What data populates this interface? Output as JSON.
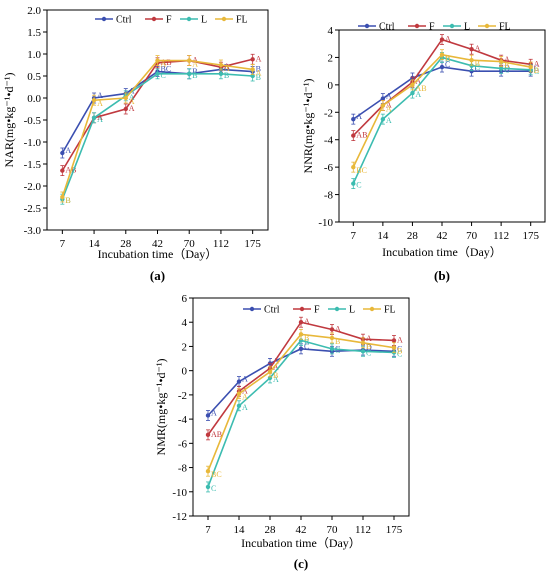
{
  "colors": {
    "Ctrl": "#3b4fb0",
    "F": "#c0393f",
    "L": "#3cbcb0",
    "FL": "#e8b83a"
  },
  "chart_data": [
    {
      "type": "line",
      "panel_label": "(a)",
      "xlabel": "Incubation time（Day）",
      "ylabel": "NAR(mg•kg⁻¹•d⁻¹)",
      "categories": [
        "7",
        "14",
        "28",
        "42",
        "70",
        "112",
        "175"
      ],
      "yticks": [
        "2.0",
        "1.5",
        "1.0",
        "0.5",
        "0.0",
        "-0.5",
        "-1.0",
        "-1.5",
        "-2.0",
        "-2.5",
        "-3.0"
      ],
      "ylim": [
        -3.0,
        2.0
      ],
      "legend": [
        "Ctrl",
        "F",
        "L",
        "FL"
      ],
      "series": [
        {
          "name": "Ctrl",
          "values": [
            -1.25,
            0.0,
            0.1,
            0.6,
            0.55,
            0.65,
            0.6
          ],
          "letters": [
            "A",
            "A",
            "A",
            "BC",
            "B",
            "B",
            "B"
          ]
        },
        {
          "name": "F",
          "values": [
            -1.65,
            -0.45,
            -0.25,
            0.8,
            0.85,
            0.7,
            0.88
          ],
          "letters": [
            "AB",
            "A",
            "A",
            "AB",
            "A",
            "A",
            "A"
          ]
        },
        {
          "name": "L",
          "values": [
            -2.3,
            -0.45,
            0.05,
            0.55,
            0.55,
            0.55,
            0.5
          ],
          "letters": [
            "B",
            "A",
            "A",
            "C",
            "B",
            "B",
            "B"
          ]
        },
        {
          "name": "FL",
          "values": [
            -2.25,
            -0.05,
            0.0,
            0.85,
            0.85,
            0.75,
            0.65
          ],
          "letters": [
            "B",
            "A",
            "A",
            "A",
            "A",
            "A",
            "A"
          ]
        }
      ]
    },
    {
      "type": "line",
      "panel_label": "(b)",
      "xlabel": "Incubation time（Day）",
      "ylabel": "NNR(mg•kg⁻¹•d⁻¹)",
      "categories": [
        "7",
        "14",
        "28",
        "42",
        "70",
        "112",
        "175"
      ],
      "yticks": [
        "4",
        "2",
        "0",
        "-2",
        "-4",
        "-6",
        "-8",
        "-10"
      ],
      "ylim": [
        -10,
        4
      ],
      "legend": [
        "Ctrl",
        "F",
        "L",
        "FL"
      ],
      "series": [
        {
          "name": "Ctrl",
          "values": [
            -2.5,
            -1.0,
            0.5,
            1.3,
            1.0,
            1.0,
            1.0
          ],
          "letters": [
            "A",
            "A",
            "A",
            "C",
            "C",
            "D",
            "C"
          ]
        },
        {
          "name": "F",
          "values": [
            -3.7,
            -1.5,
            0.2,
            3.3,
            2.6,
            1.8,
            1.5
          ],
          "letters": [
            "AB",
            "A",
            "A",
            "A",
            "A",
            "A",
            "A"
          ]
        },
        {
          "name": "L",
          "values": [
            -7.2,
            -2.5,
            -0.6,
            2.0,
            1.4,
            1.2,
            1.1
          ],
          "letters": [
            "C",
            "A",
            "A",
            "B",
            "C",
            "C",
            "C"
          ]
        },
        {
          "name": "FL",
          "values": [
            -6.0,
            -1.5,
            0.0,
            2.2,
            1.8,
            1.7,
            1.3
          ],
          "letters": [
            "BC",
            "A",
            "AB",
            "B",
            "B",
            "B",
            "B"
          ]
        }
      ]
    },
    {
      "type": "line",
      "panel_label": "(c)",
      "xlabel": "Incubation time（Day）",
      "ylabel": "NMR(mg•kg⁻¹•d⁻¹)",
      "categories": [
        "7",
        "14",
        "28",
        "42",
        "70",
        "112",
        "175"
      ],
      "yticks": [
        "6",
        "4",
        "2",
        "0",
        "-2",
        "-4",
        "-6",
        "-8",
        "-10",
        "-12"
      ],
      "ylim": [
        -12,
        6
      ],
      "legend": [
        "Ctrl",
        "F",
        "L",
        "FL"
      ],
      "series": [
        {
          "name": "Ctrl",
          "values": [
            -3.7,
            -0.9,
            0.6,
            1.8,
            1.6,
            1.7,
            1.6
          ],
          "letters": [
            "A",
            "A",
            "A",
            "C",
            "C",
            "D",
            "C"
          ]
        },
        {
          "name": "F",
          "values": [
            -5.3,
            -1.7,
            0.2,
            4.0,
            3.4,
            2.6,
            2.5
          ],
          "letters": [
            "AB",
            "A",
            "A",
            "A",
            "A",
            "A",
            "A"
          ]
        },
        {
          "name": "L",
          "values": [
            -9.6,
            -2.9,
            -0.6,
            2.5,
            1.8,
            1.6,
            1.5
          ],
          "letters": [
            "C",
            "A",
            "A",
            "B",
            "C",
            "C",
            "C"
          ]
        },
        {
          "name": "FL",
          "values": [
            -8.3,
            -1.9,
            -0.1,
            3.0,
            2.7,
            2.3,
            1.9
          ],
          "letters": [
            "BC",
            "A",
            "B",
            "B",
            "B",
            "B",
            "B"
          ]
        }
      ]
    }
  ]
}
